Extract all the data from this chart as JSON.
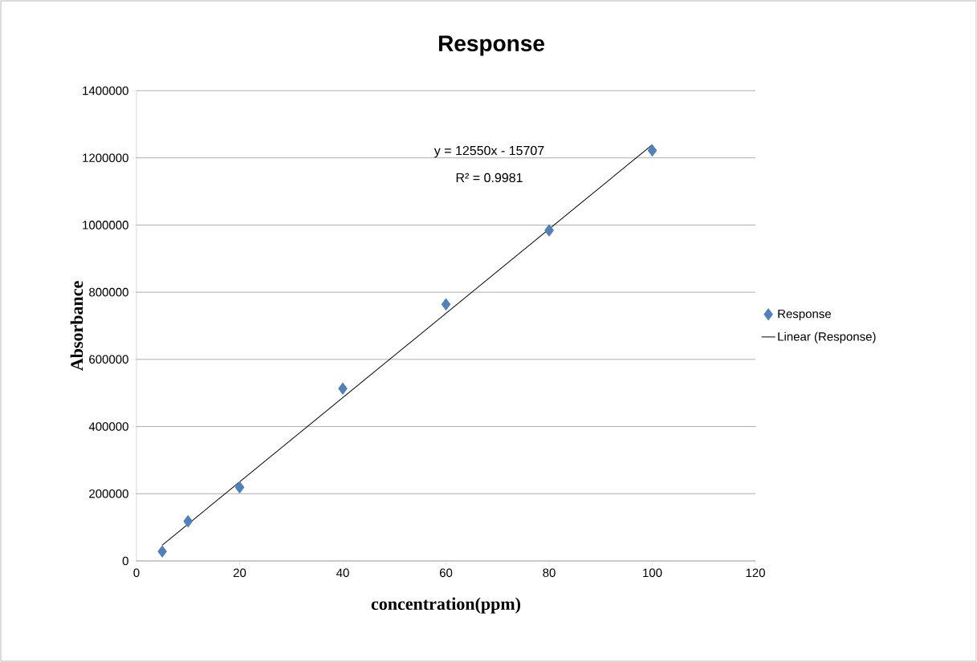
{
  "chart_data": {
    "type": "scatter",
    "title": "Response",
    "xlabel": "concentration(ppm)",
    "ylabel": "Absorbance",
    "x": [
      5,
      10,
      20,
      40,
      60,
      80,
      100
    ],
    "series": [
      {
        "name": "Response",
        "color": "#4f81bd",
        "marker": "diamond",
        "values": [
          28000,
          118000,
          219000,
          513000,
          764000,
          984000,
          1222000
        ]
      },
      {
        "name": "Linear (Response)",
        "type": "line",
        "color": "#000000",
        "x": [
          5,
          100
        ],
        "marker": "none",
        "values": [
          47000,
          1239000
        ]
      }
    ],
    "xlim": [
      0,
      120
    ],
    "ylim": [
      0,
      1400000
    ],
    "xticks": [
      0,
      20,
      40,
      60,
      80,
      100,
      120
    ],
    "yticks": [
      0,
      200000,
      400000,
      600000,
      800000,
      1000000,
      1200000,
      1400000
    ],
    "grid": "y",
    "legend": "right",
    "annotations": [
      "y = 12550x - 15707",
      "R² = 0.9981"
    ]
  }
}
